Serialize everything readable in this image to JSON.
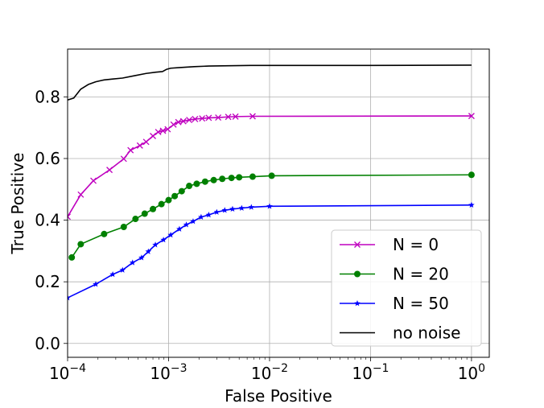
{
  "chart_data": {
    "type": "line",
    "title": "",
    "xlabel": "False Positive",
    "ylabel": "True Positive",
    "xscale": "log",
    "xlim": [
      0.0001,
      1.5
    ],
    "ylim": [
      -0.045,
      0.955
    ],
    "x_ticks": [
      {
        "value": 0.0001,
        "base": "10",
        "exp": "−4"
      },
      {
        "value": 0.001,
        "base": "10",
        "exp": "−3"
      },
      {
        "value": 0.01,
        "base": "10",
        "exp": "−2"
      },
      {
        "value": 0.1,
        "base": "10",
        "exp": "−1"
      },
      {
        "value": 1,
        "base": "10",
        "exp": "0"
      }
    ],
    "y_ticks": [
      {
        "value": 0.0,
        "label": "0.0"
      },
      {
        "value": 0.2,
        "label": "0.2"
      },
      {
        "value": 0.4,
        "label": "0.4"
      },
      {
        "value": 0.6,
        "label": "0.6"
      },
      {
        "value": 0.8,
        "label": "0.8"
      }
    ],
    "grid": true,
    "legend_position": "bottom-right",
    "series": [
      {
        "name": "N = 0",
        "color": "#bf00bf",
        "marker": "x",
        "x": [
          0.0001,
          0.000135,
          0.00018,
          0.00026,
          0.00036,
          0.00042,
          0.00052,
          0.0006,
          0.0007,
          0.00079,
          0.00088,
          0.00098,
          0.00112,
          0.00125,
          0.0014,
          0.0016,
          0.00183,
          0.00215,
          0.0025,
          0.0031,
          0.0039,
          0.0046,
          0.0068,
          1
        ],
        "y": [
          0.411,
          0.483,
          0.528,
          0.563,
          0.599,
          0.627,
          0.642,
          0.654,
          0.673,
          0.686,
          0.69,
          0.695,
          0.71,
          0.718,
          0.721,
          0.725,
          0.728,
          0.73,
          0.732,
          0.733,
          0.735,
          0.736,
          0.737,
          0.738
        ]
      },
      {
        "name": "N = 20",
        "color": "#008000",
        "marker": "circle",
        "x": [
          0.00011,
          0.000135,
          0.00023,
          0.00036,
          0.00047,
          0.00058,
          0.0007,
          0.00085,
          0.001,
          0.00115,
          0.00135,
          0.0016,
          0.0019,
          0.0023,
          0.0028,
          0.0034,
          0.0042,
          0.005,
          0.0068,
          0.0105,
          1
        ],
        "y": [
          0.279,
          0.322,
          0.355,
          0.378,
          0.404,
          0.421,
          0.436,
          0.452,
          0.465,
          0.478,
          0.494,
          0.511,
          0.518,
          0.525,
          0.53,
          0.534,
          0.537,
          0.539,
          0.541,
          0.544,
          0.547
        ]
      },
      {
        "name": "N = 50",
        "color": "#0000ff",
        "marker": "star",
        "x": [
          0.0001,
          0.00019,
          0.00028,
          0.00035,
          0.00044,
          0.00054,
          0.00063,
          0.00074,
          0.00089,
          0.00105,
          0.00128,
          0.0015,
          0.00175,
          0.0021,
          0.0025,
          0.003,
          0.0036,
          0.0043,
          0.0053,
          0.0066,
          0.01,
          1
        ],
        "y": [
          0.148,
          0.192,
          0.224,
          0.238,
          0.262,
          0.278,
          0.298,
          0.32,
          0.336,
          0.352,
          0.371,
          0.385,
          0.396,
          0.41,
          0.417,
          0.426,
          0.432,
          0.436,
          0.439,
          0.442,
          0.445,
          0.449
        ]
      },
      {
        "name": "no noise",
        "color": "#000000",
        "marker": "none",
        "x": [
          0.0001,
          0.000115,
          0.000135,
          0.00016,
          0.00019,
          0.00023,
          0.00028,
          0.00035,
          0.00045,
          0.0006,
          0.00075,
          0.00087,
          0.00095,
          0.00105,
          0.0013,
          0.0018,
          0.0025,
          0.004,
          0.0065,
          0.01,
          0.03,
          0.1,
          1
        ],
        "y": [
          0.79,
          0.796,
          0.825,
          0.84,
          0.849,
          0.855,
          0.858,
          0.861,
          0.868,
          0.876,
          0.88,
          0.882,
          0.889,
          0.893,
          0.895,
          0.898,
          0.9,
          0.901,
          0.902,
          0.902,
          0.902,
          0.902,
          0.903
        ]
      }
    ]
  }
}
